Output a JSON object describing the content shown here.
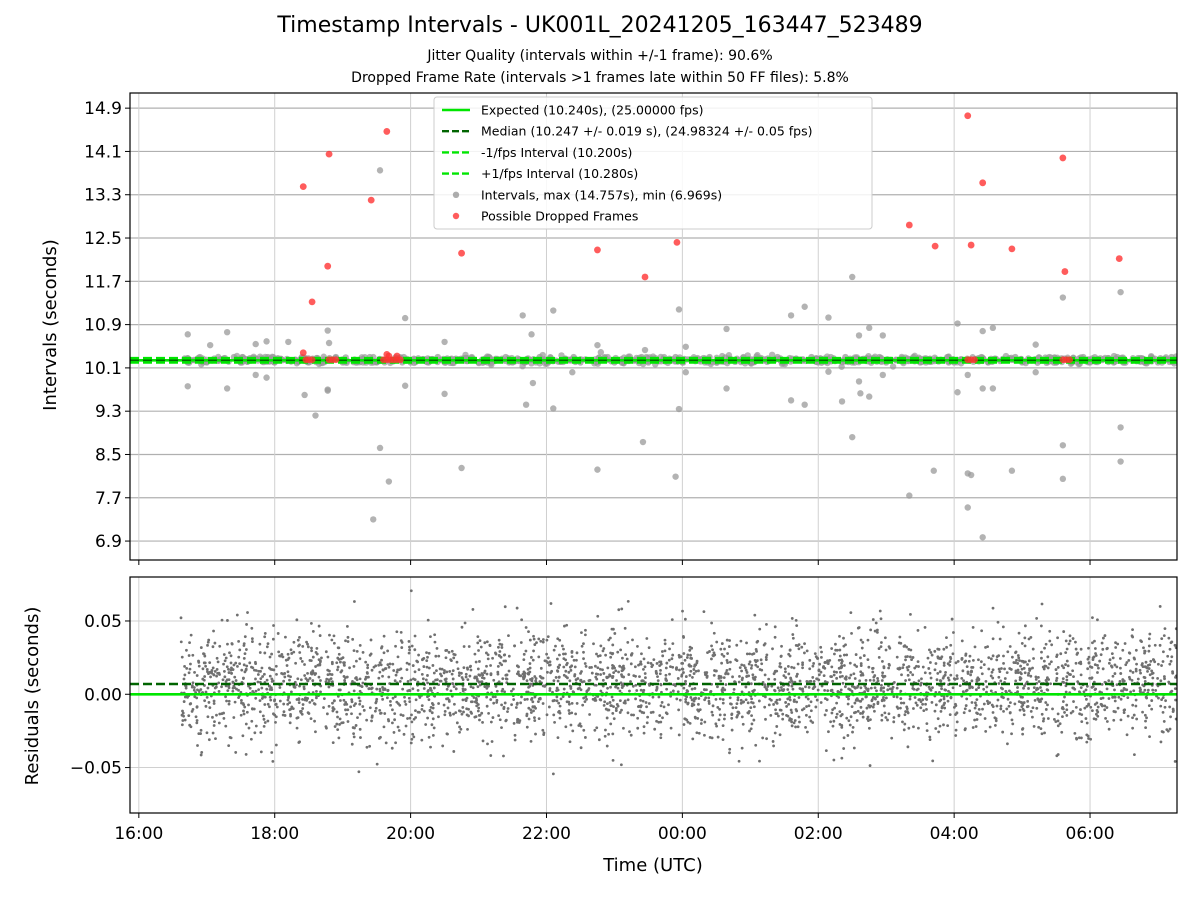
{
  "chart_data": [
    {
      "type": "scatter",
      "title": "Timestamp Intervals - UK001L_20241205_163447_523489",
      "subtitles": [
        "Jitter Quality (intervals within +/-1 frame): 90.6%",
        "Dropped Frame Rate (intervals >1 frames late within 50 FF files): 5.8%"
      ],
      "xlabel": "",
      "ylabel": "Intervals (seconds)",
      "xlim_hours": [
        15.87,
        31.28
      ],
      "ylim": [
        6.55,
        15.18
      ],
      "yticks": [
        "6.9",
        "7.7",
        "8.5",
        "9.3",
        "10.1",
        "10.9",
        "11.7",
        "12.5",
        "13.3",
        "14.1",
        "14.9"
      ],
      "grid": true,
      "legend_position": "top-center",
      "reference_lines": [
        {
          "name": "Expected (10.240s), (25.00000 fps)",
          "y": 10.24,
          "style": "solid",
          "color": "#00e600"
        },
        {
          "name": "Median (10.247 +/- 0.019 s), (24.98324 +/- 0.05 fps)",
          "y": 10.247,
          "style": "dashed",
          "color": "#006400"
        },
        {
          "name": "-1/fps Interval (10.200s)",
          "y": 10.2,
          "style": "dashed",
          "color": "#00e600"
        },
        {
          "name": "+1/fps Interval (10.280s)",
          "y": 10.28,
          "style": "dashed",
          "color": "#00e600"
        }
      ],
      "series": [
        {
          "name": "Intervals, max (14.757s), min (6.969s)",
          "color": "#999999",
          "points": [
            [
              16.72,
              10.72
            ],
            [
              16.72,
              9.76
            ],
            [
              17.05,
              10.52
            ],
            [
              17.3,
              10.76
            ],
            [
              17.3,
              9.72
            ],
            [
              17.72,
              10.54
            ],
            [
              17.72,
              9.97
            ],
            [
              17.88,
              10.59
            ],
            [
              17.88,
              9.92
            ],
            [
              18.2,
              10.58
            ],
            [
              18.44,
              9.6
            ],
            [
              18.6,
              9.22
            ],
            [
              18.78,
              10.79
            ],
            [
              18.78,
              9.7
            ],
            [
              18.78,
              9.68
            ],
            [
              18.8,
              10.56
            ],
            [
              19.55,
              13.75
            ],
            [
              19.55,
              8.62
            ],
            [
              19.68,
              8.0
            ],
            [
              19.45,
              7.3
            ],
            [
              19.92,
              11.02
            ],
            [
              19.92,
              9.77
            ],
            [
              20.5,
              10.58
            ],
            [
              20.5,
              9.62
            ],
            [
              20.75,
              8.25
            ],
            [
              21.65,
              11.07
            ],
            [
              21.7,
              9.42
            ],
            [
              21.78,
              10.72
            ],
            [
              21.8,
              9.82
            ],
            [
              22.1,
              11.16
            ],
            [
              22.1,
              9.35
            ],
            [
              22.38,
              10.02
            ],
            [
              22.75,
              10.52
            ],
            [
              22.75,
              8.22
            ],
            [
              22.8,
              10.39
            ],
            [
              23.42,
              8.73
            ],
            [
              23.45,
              10.43
            ],
            [
              23.9,
              8.09
            ],
            [
              23.95,
              9.34
            ],
            [
              23.95,
              11.18
            ],
            [
              24.05,
              10.49
            ],
            [
              24.05,
              10.02
            ],
            [
              24.65,
              10.82
            ],
            [
              24.65,
              9.72
            ],
            [
              25.6,
              11.07
            ],
            [
              25.6,
              9.5
            ],
            [
              25.8,
              11.23
            ],
            [
              25.8,
              9.42
            ],
            [
              26.15,
              10.03
            ],
            [
              26.15,
              11.03
            ],
            [
              26.35,
              9.48
            ],
            [
              26.5,
              11.78
            ],
            [
              26.5,
              8.82
            ],
            [
              26.6,
              10.7
            ],
            [
              26.6,
              9.85
            ],
            [
              26.62,
              9.63
            ],
            [
              26.75,
              10.84
            ],
            [
              26.75,
              9.57
            ],
            [
              26.95,
              10.7
            ],
            [
              26.95,
              9.97
            ],
            [
              28.05,
              10.92
            ],
            [
              28.05,
              9.65
            ],
            [
              28.2,
              9.97
            ],
            [
              28.2,
              7.52
            ],
            [
              28.25,
              8.12
            ],
            [
              28.42,
              10.78
            ],
            [
              28.42,
              9.72
            ],
            [
              28.42,
              6.97
            ],
            [
              28.57,
              10.84
            ],
            [
              28.57,
              9.72
            ],
            [
              28.85,
              8.2
            ],
            [
              29.2,
              10.53
            ],
            [
              29.2,
              10.02
            ],
            [
              29.6,
              11.4
            ],
            [
              29.6,
              8.67
            ],
            [
              29.6,
              8.05
            ],
            [
              30.45,
              11.5
            ],
            [
              30.45,
              9.0
            ],
            [
              30.45,
              8.37
            ],
            [
              28.2,
              8.15
            ],
            [
              27.34,
              7.74
            ],
            [
              27.7,
              8.2
            ],
            [
              16.72,
              10.2
            ],
            [
              17.0,
              10.2
            ],
            [
              17.5,
              10.2
            ],
            [
              18.0,
              10.2
            ],
            [
              18.5,
              10.2
            ],
            [
              19.0,
              10.2
            ],
            [
              19.5,
              10.2
            ],
            [
              20.0,
              10.2
            ],
            [
              20.5,
              10.2
            ],
            [
              21.0,
              10.2
            ],
            [
              21.5,
              10.2
            ],
            [
              22.0,
              10.2
            ],
            [
              22.5,
              10.2
            ],
            [
              23.0,
              10.2
            ],
            [
              23.5,
              10.2
            ],
            [
              24.0,
              10.2
            ],
            [
              24.5,
              10.2
            ],
            [
              25.0,
              10.2
            ],
            [
              25.5,
              10.2
            ],
            [
              26.0,
              10.2
            ],
            [
              26.5,
              10.2
            ],
            [
              27.0,
              10.2
            ],
            [
              27.5,
              10.2
            ],
            [
              28.0,
              10.2
            ],
            [
              28.5,
              10.2
            ],
            [
              29.0,
              10.2
            ],
            [
              29.5,
              10.2
            ],
            [
              30.0,
              10.2
            ],
            [
              30.5,
              10.2
            ],
            [
              31.0,
              10.2
            ],
            [
              16.9,
              10.3
            ],
            [
              17.4,
              10.3
            ],
            [
              17.9,
              10.3
            ],
            [
              18.4,
              10.3
            ],
            [
              18.9,
              10.3
            ],
            [
              19.4,
              10.3
            ],
            [
              19.9,
              10.3
            ],
            [
              20.4,
              10.3
            ],
            [
              20.9,
              10.3
            ],
            [
              21.4,
              10.3
            ],
            [
              21.9,
              10.3
            ],
            [
              22.4,
              10.3
            ],
            [
              22.9,
              10.3
            ],
            [
              23.4,
              10.3
            ],
            [
              23.9,
              10.3
            ],
            [
              24.4,
              10.3
            ],
            [
              24.9,
              10.3
            ],
            [
              25.4,
              10.3
            ],
            [
              25.9,
              10.3
            ],
            [
              26.4,
              10.3
            ],
            [
              26.9,
              10.3
            ],
            [
              27.4,
              10.3
            ],
            [
              27.9,
              10.3
            ],
            [
              28.4,
              10.3
            ],
            [
              28.9,
              10.3
            ],
            [
              29.4,
              10.3
            ],
            [
              29.9,
              10.3
            ],
            [
              30.4,
              10.3
            ],
            [
              30.9,
              10.3
            ],
            [
              31.2,
              10.3
            ]
          ]
        },
        {
          "name": "Possible Dropped Frames",
          "color": "#ff3333",
          "points": [
            [
              18.42,
              13.45
            ],
            [
              18.55,
              11.32
            ],
            [
              18.78,
              11.98
            ],
            [
              18.8,
              14.05
            ],
            [
              19.42,
              13.2
            ],
            [
              19.65,
              14.47
            ],
            [
              20.75,
              12.22
            ],
            [
              22.75,
              12.28
            ],
            [
              23.45,
              11.78
            ],
            [
              23.92,
              12.42
            ],
            [
              27.34,
              12.74
            ],
            [
              27.72,
              12.35
            ],
            [
              28.2,
              14.76
            ],
            [
              28.25,
              12.37
            ],
            [
              28.42,
              13.52
            ],
            [
              28.85,
              12.3
            ],
            [
              29.6,
              13.98
            ],
            [
              29.63,
              11.88
            ],
            [
              30.43,
              12.12
            ],
            [
              18.42,
              10.38
            ],
            [
              18.46,
              10.25
            ],
            [
              18.5,
              10.25
            ],
            [
              18.55,
              10.25
            ],
            [
              18.8,
              10.25
            ],
            [
              18.85,
              10.25
            ],
            [
              18.9,
              10.25
            ],
            [
              19.6,
              10.25
            ],
            [
              19.65,
              10.25
            ],
            [
              19.7,
              10.25
            ],
            [
              19.75,
              10.25
            ],
            [
              19.8,
              10.25
            ],
            [
              19.85,
              10.25
            ],
            [
              19.68,
              10.32
            ],
            [
              19.8,
              10.32
            ],
            [
              28.2,
              10.25
            ],
            [
              28.25,
              10.25
            ],
            [
              28.3,
              10.25
            ],
            [
              29.6,
              10.25
            ],
            [
              29.65,
              10.25
            ],
            [
              29.7,
              10.25
            ],
            [
              19.65,
              10.35
            ]
          ]
        }
      ]
    },
    {
      "type": "scatter",
      "xlabel": "Time (UTC)",
      "ylabel": "Residuals (seconds)",
      "xlim_hours": [
        15.87,
        31.28
      ],
      "ylim": [
        -0.081,
        0.08
      ],
      "xticks": [
        "16:00",
        "18:00",
        "20:00",
        "22:00",
        "00:00",
        "02:00",
        "04:00",
        "06:00"
      ],
      "yticks": [
        "−0.05",
        "0.00",
        "0.05"
      ],
      "grid": true,
      "reference_lines": [
        {
          "y": 0.0,
          "style": "solid",
          "color": "#00e600"
        },
        {
          "y": 0.007,
          "style": "dashed",
          "color": "#006400"
        }
      ],
      "series": [
        {
          "color": "#707070",
          "x_range_hours": [
            16.62,
            31.28
          ],
          "count": 3400,
          "spread_sd": 0.022
        }
      ]
    }
  ]
}
